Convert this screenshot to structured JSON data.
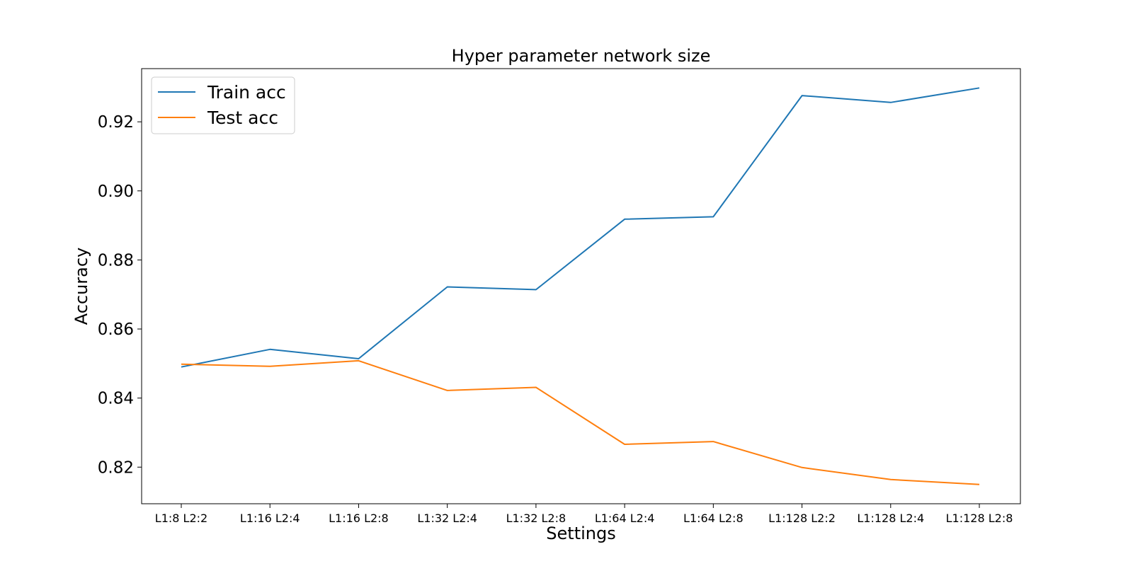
{
  "chart_data": {
    "type": "line",
    "title": "Hyper parameter network size",
    "xlabel": "Settings",
    "ylabel": "Accuracy",
    "categories": [
      "L1:8 L2:2",
      "L1:16 L2:4",
      "L1:16 L2:8",
      "L1:32 L2:4",
      "L1:32 L2:8",
      "L1:64 L2:4",
      "L1:64 L2:8",
      "L1:128 L2:2",
      "L1:128 L2:4",
      "L1:128 L2:8"
    ],
    "series": [
      {
        "name": "Train acc",
        "color": "#1f77b4",
        "values": [
          0.849,
          0.8541,
          0.8514,
          0.8722,
          0.8714,
          0.8918,
          0.8925,
          0.9276,
          0.9256,
          0.9298
        ]
      },
      {
        "name": "Test acc",
        "color": "#ff7f0e",
        "values": [
          0.8498,
          0.8492,
          0.8508,
          0.8422,
          0.8431,
          0.8266,
          0.8274,
          0.8199,
          0.8164,
          0.815
        ]
      }
    ],
    "ylim": [
      0.8094,
      0.9354
    ],
    "yticks": [
      0.82,
      0.84,
      0.86,
      0.88,
      0.9,
      0.92
    ],
    "ytick_labels": [
      "0.82",
      "0.84",
      "0.86",
      "0.88",
      "0.90",
      "0.92"
    ],
    "grid": false,
    "legend_position": "upper-left"
  }
}
